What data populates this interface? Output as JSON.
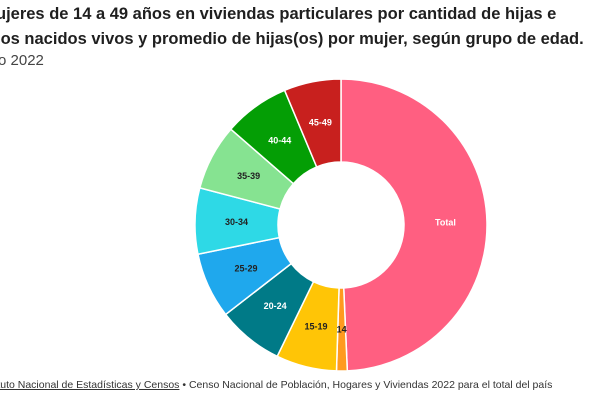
{
  "header": {
    "title_line1": "ujeres de 14 a 49 años en viviendas particulares por cantidad de hijas e",
    "title_line2": "ios nacidos vivos y promedio de hijas(os) por mujer, según grupo de edad.",
    "subtitle": "o 2022"
  },
  "footer": {
    "source_link": "ituto Nacional de Estadísticas y Censos",
    "separator": " • ",
    "source_detail": "Censo Nacional de Población, Hogares y Viviendas 2022 para el total del país"
  },
  "chart_data": {
    "type": "pie",
    "donut": true,
    "categories": [
      "Total",
      "14",
      "15-19",
      "20-24",
      "25-29",
      "30-34",
      "35-39",
      "40-44",
      "45-49"
    ],
    "values": [
      50,
      1.2,
      6.8,
      7.4,
      7.4,
      7.4,
      7.4,
      7.4,
      6.4
    ],
    "colors": [
      "#ff5f81",
      "#ff9a1f",
      "#ffc506",
      "#007a87",
      "#1fa8ed",
      "#2ed9e6",
      "#86e391",
      "#049e05",
      "#c8201e"
    ],
    "label_colors": [
      "#ffffff",
      "#222222",
      "#222222",
      "#ffffff",
      "#222222",
      "#222222",
      "#222222",
      "#ffffff",
      "#ffffff"
    ]
  }
}
